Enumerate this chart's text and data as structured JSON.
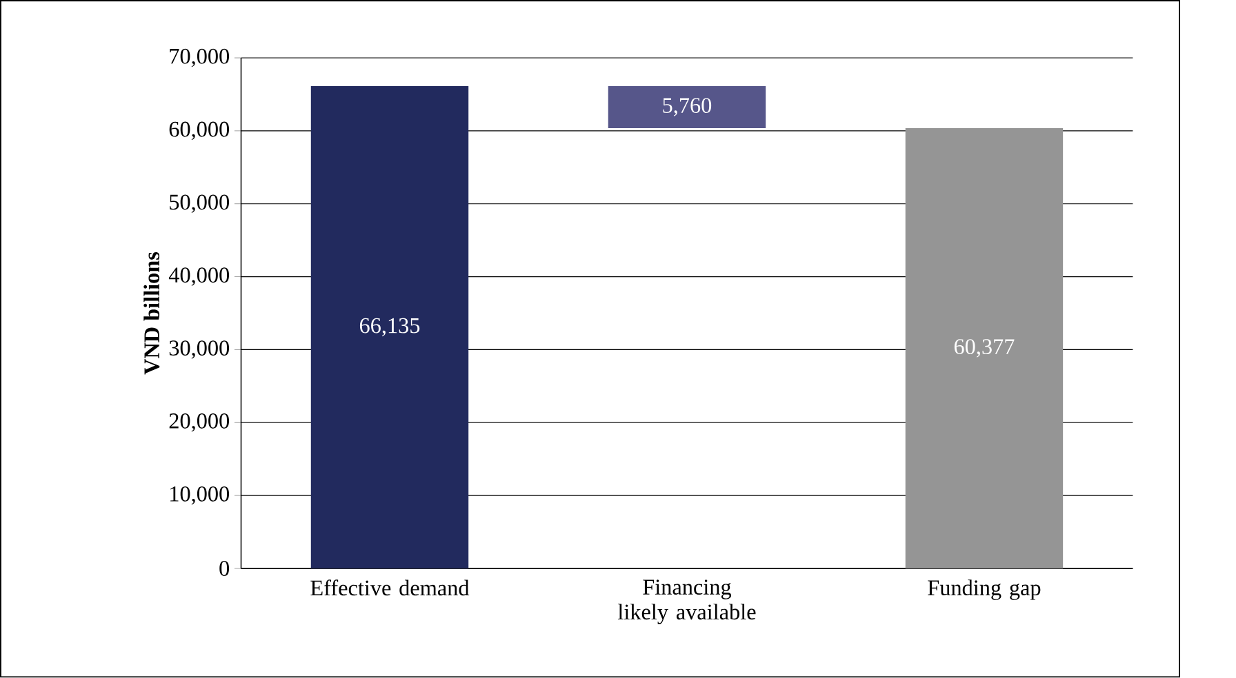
{
  "chart_data": {
    "type": "bar",
    "ylabel": "VND billions",
    "categories": [
      "Effective demand",
      "Financing likely available",
      "Funding gap"
    ],
    "values": [
      66135,
      5760,
      60377
    ],
    "base": [
      0,
      60377,
      0
    ],
    "colors": [
      "#222a5e",
      "#56568a",
      "#959595"
    ],
    "value_labels": [
      "66,135",
      "5,760",
      "60,377"
    ],
    "ylim": [
      0,
      70000
    ],
    "yticks": [
      0,
      {
        "value": 10000,
        "label": "10,000"
      },
      {
        "value": 20000,
        "label": "20,000"
      },
      {
        "value": 30000,
        "label": "30,000"
      },
      {
        "value": 40000,
        "label": "40,000"
      },
      {
        "value": 50000,
        "label": "50,000"
      },
      {
        "value": 60000,
        "label": "60,000"
      },
      {
        "value": 70000,
        "label": "70,000"
      }
    ],
    "grid": "y"
  }
}
